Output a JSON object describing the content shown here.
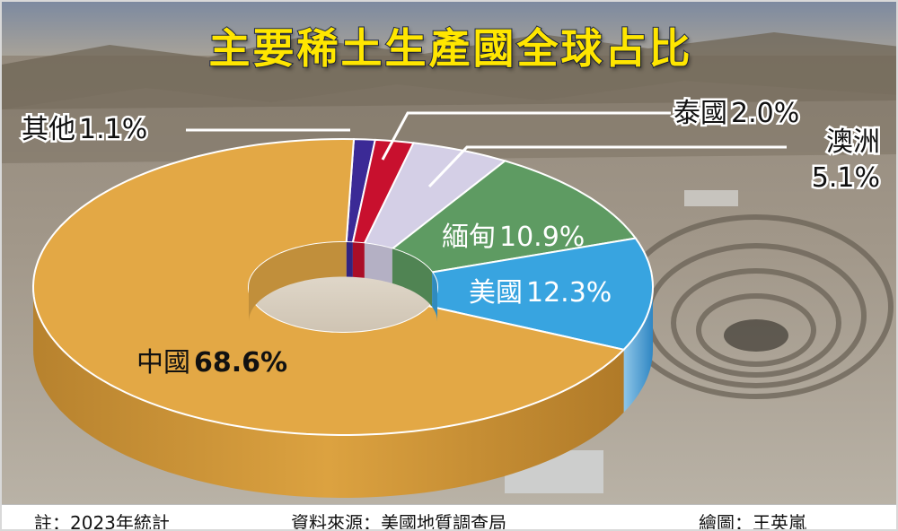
{
  "title": "主要稀土生產國全球占比",
  "footer": {
    "note": "註：2023年統計",
    "source": "資料來源：美國地質調查局",
    "credit": "繪圖：王英嵐"
  },
  "chart_data": {
    "type": "pie",
    "style": "donut-3d",
    "unit": "%",
    "slices": [
      {
        "name": "其他",
        "value": 1.1,
        "label": "1.1%",
        "color": "#3b2a96"
      },
      {
        "name": "泰國",
        "value": 2.0,
        "label": "2.0%",
        "color": "#c8102e"
      },
      {
        "name": "澳洲",
        "value": 5.1,
        "label": "5.1%",
        "color": "#d4cfe6"
      },
      {
        "name": "緬甸",
        "value": 10.9,
        "label": "10.9%",
        "color": "#5e9b62"
      },
      {
        "name": "美國",
        "value": 12.3,
        "label": "12.3%",
        "color": "#38a4e0"
      },
      {
        "name": "中國",
        "value": 68.6,
        "label": "68.6%",
        "color": "#e3a845"
      }
    ]
  }
}
